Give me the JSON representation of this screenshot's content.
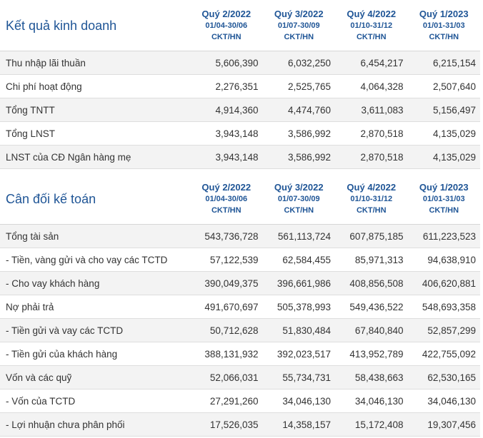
{
  "income": {
    "title": "Kết quả kinh doanh",
    "quarters": [
      {
        "label": "Quý 2/2022",
        "range": "01/04-30/06",
        "unit": "CKT/HN"
      },
      {
        "label": "Quý 3/2022",
        "range": "01/07-30/09",
        "unit": "CKT/HN"
      },
      {
        "label": "Quý 4/2022",
        "range": "01/10-31/12",
        "unit": "CKT/HN"
      },
      {
        "label": "Quý 1/2023",
        "range": "01/01-31/03",
        "unit": "CKT/HN"
      }
    ],
    "rows": [
      {
        "label": "Thu nhập lãi thuần",
        "values": [
          "5,606,390",
          "6,032,250",
          "6,454,217",
          "6,215,154"
        ]
      },
      {
        "label": "Chi phí hoạt động",
        "values": [
          "2,276,351",
          "2,525,765",
          "4,064,328",
          "2,507,640"
        ]
      },
      {
        "label": "Tổng TNTT",
        "values": [
          "4,914,360",
          "4,474,760",
          "3,611,083",
          "5,156,497"
        ]
      },
      {
        "label": "Tổng LNST",
        "values": [
          "3,943,148",
          "3,586,992",
          "2,870,518",
          "4,135,029"
        ]
      },
      {
        "label": "LNST của CĐ Ngân hàng mẹ",
        "values": [
          "3,943,148",
          "3,586,992",
          "2,870,518",
          "4,135,029"
        ]
      }
    ]
  },
  "balance": {
    "title": "Cân đối kế toán",
    "quarters": [
      {
        "label": "Quý 2/2022",
        "range": "01/04-30/06",
        "unit": "CKT/HN"
      },
      {
        "label": "Quý 3/2022",
        "range": "01/07-30/09",
        "unit": "CKT/HN"
      },
      {
        "label": "Quý 4/2022",
        "range": "01/10-31/12",
        "unit": "CKT/HN"
      },
      {
        "label": "Quý 1/2023",
        "range": "01/01-31/03",
        "unit": "CKT/HN"
      }
    ],
    "rows": [
      {
        "label": "Tổng tài sản",
        "values": [
          "543,736,728",
          "561,113,724",
          "607,875,185",
          "611,223,523"
        ]
      },
      {
        "label": "- Tiền, vàng gửi và cho vay các TCTD",
        "values": [
          "57,122,539",
          "62,584,455",
          "85,971,313",
          "94,638,910"
        ]
      },
      {
        "label": "- Cho vay khách hàng",
        "values": [
          "390,049,375",
          "396,661,986",
          "408,856,508",
          "406,620,881"
        ]
      },
      {
        "label": "Nợ phải trả",
        "values": [
          "491,670,697",
          "505,378,993",
          "549,436,522",
          "548,693,358"
        ]
      },
      {
        "label": "- Tiền gửi và vay các TCTD",
        "values": [
          "50,712,628",
          "51,830,484",
          "67,840,840",
          "52,857,299"
        ]
      },
      {
        "label": "- Tiền gửi của khách hàng",
        "values": [
          "388,131,932",
          "392,023,517",
          "413,952,789",
          "422,755,092"
        ]
      },
      {
        "label": "Vốn và các quỹ",
        "values": [
          "52,066,031",
          "55,734,731",
          "58,438,663",
          "62,530,165"
        ]
      },
      {
        "label": "- Vốn của TCTD",
        "values": [
          "27,291,260",
          "34,046,130",
          "34,046,130",
          "34,046,130"
        ]
      },
      {
        "label": "- Lợi nhuận chưa phân phối",
        "values": [
          "17,526,035",
          "14,358,157",
          "15,172,408",
          "19,307,456"
        ]
      }
    ]
  }
}
